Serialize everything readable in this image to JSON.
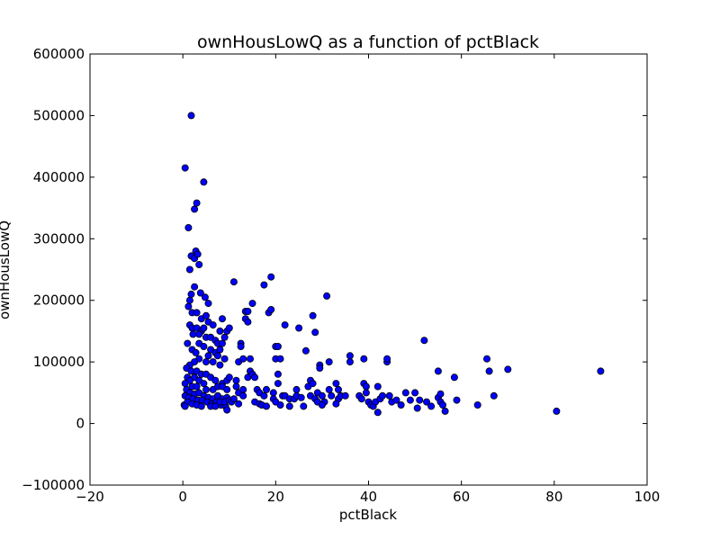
{
  "chart_data": {
    "type": "scatter",
    "title": "ownHousLowQ as a function of pctBlack",
    "xlabel": "pctBlack",
    "ylabel": "ownHousLowQ",
    "xlim": [
      -20,
      100
    ],
    "ylim": [
      -100000,
      600000
    ],
    "xticks": [
      -20,
      0,
      20,
      40,
      60,
      80,
      100
    ],
    "yticks": [
      -100000,
      0,
      100000,
      200000,
      300000,
      400000,
      500000,
      600000
    ],
    "xtick_labels": [
      "−20",
      "0",
      "20",
      "40",
      "60",
      "80",
      "100"
    ],
    "ytick_labels": [
      "−100000",
      "0",
      "100000",
      "200000",
      "300000",
      "400000",
      "500000",
      "600000"
    ],
    "grid": false,
    "marker_color": "#0000ff",
    "series": [
      {
        "points": [
          [
            0.5,
            415000
          ],
          [
            1.8,
            500000
          ],
          [
            4.5,
            392000
          ],
          [
            3.0,
            358000
          ],
          [
            2.5,
            348000
          ],
          [
            1.2,
            318000
          ],
          [
            2.8,
            280000
          ],
          [
            1.8,
            272000
          ],
          [
            2.5,
            268000
          ],
          [
            3.2,
            275000
          ],
          [
            1.5,
            250000
          ],
          [
            3.5,
            258000
          ],
          [
            2.5,
            222000
          ],
          [
            1.8,
            210000
          ],
          [
            1.5,
            200000
          ],
          [
            3.8,
            212000
          ],
          [
            4.8,
            205000
          ],
          [
            5.5,
            195000
          ],
          [
            1.2,
            190000
          ],
          [
            2.0,
            180000
          ],
          [
            3.0,
            180000
          ],
          [
            4.0,
            170000
          ],
          [
            5.0,
            175000
          ],
          [
            5.5,
            165000
          ],
          [
            6.5,
            160000
          ],
          [
            1.5,
            160000
          ],
          [
            2.0,
            155000
          ],
          [
            3.0,
            155000
          ],
          [
            4.0,
            150000
          ],
          [
            4.5,
            155000
          ],
          [
            2.2,
            145000
          ],
          [
            3.5,
            145000
          ],
          [
            5.0,
            140000
          ],
          [
            6.0,
            140000
          ],
          [
            7.0,
            135000
          ],
          [
            8.5,
            170000
          ],
          [
            8.0,
            150000
          ],
          [
            7.5,
            130000
          ],
          [
            9.5,
            150000
          ],
          [
            10.0,
            155000
          ],
          [
            9.0,
            140000
          ],
          [
            8.5,
            130000
          ],
          [
            3.5,
            130000
          ],
          [
            4.5,
            125000
          ],
          [
            1.0,
            130000
          ],
          [
            2.0,
            120000
          ],
          [
            2.8,
            115000
          ],
          [
            6.0,
            120000
          ],
          [
            5.5,
            110000
          ],
          [
            7.0,
            115000
          ],
          [
            8.0,
            120000
          ],
          [
            7.5,
            110000
          ],
          [
            9.0,
            105000
          ],
          [
            8.0,
            95000
          ],
          [
            6.5,
            100000
          ],
          [
            5.0,
            100000
          ],
          [
            3.5,
            105000
          ],
          [
            2.5,
            100000
          ],
          [
            1.5,
            95000
          ],
          [
            0.8,
            90000
          ],
          [
            1.8,
            85000
          ],
          [
            3.0,
            85000
          ],
          [
            4.0,
            80000
          ],
          [
            5.0,
            80000
          ],
          [
            2.5,
            75000
          ],
          [
            1.0,
            75000
          ],
          [
            1.5,
            70000
          ],
          [
            3.5,
            70000
          ],
          [
            4.5,
            65000
          ],
          [
            6.0,
            75000
          ],
          [
            7.0,
            70000
          ],
          [
            8.5,
            65000
          ],
          [
            9.5,
            70000
          ],
          [
            10.0,
            75000
          ],
          [
            0.5,
            65000
          ],
          [
            2.0,
            60000
          ],
          [
            3.0,
            60000
          ],
          [
            5.0,
            55000
          ],
          [
            6.5,
            55000
          ],
          [
            7.5,
            60000
          ],
          [
            8.5,
            60000
          ],
          [
            9.5,
            55000
          ],
          [
            0.8,
            55000
          ],
          [
            1.5,
            50000
          ],
          [
            2.5,
            48000
          ],
          [
            3.5,
            50000
          ],
          [
            4.5,
            45000
          ],
          [
            5.5,
            42000
          ],
          [
            6.5,
            40000
          ],
          [
            7.5,
            45000
          ],
          [
            8.5,
            40000
          ],
          [
            9.5,
            42000
          ],
          [
            0.5,
            45000
          ],
          [
            1.2,
            42000
          ],
          [
            2.2,
            40000
          ],
          [
            3.2,
            38000
          ],
          [
            4.2,
            38000
          ],
          [
            5.2,
            35000
          ],
          [
            6.2,
            32000
          ],
          [
            7.2,
            35000
          ],
          [
            8.2,
            30000
          ],
          [
            9.2,
            28000
          ],
          [
            0.3,
            30000
          ],
          [
            1.0,
            35000
          ],
          [
            2.0,
            32000
          ],
          [
            3.0,
            30000
          ],
          [
            4.0,
            28000
          ],
          [
            9.5,
            22000
          ],
          [
            0.5,
            28000
          ],
          [
            6.0,
            28000
          ],
          [
            7.0,
            28000
          ],
          [
            8.0,
            35000
          ],
          [
            9.0,
            35000
          ],
          [
            10.0,
            38000
          ],
          [
            10.5,
            35000
          ],
          [
            11.0,
            40000
          ],
          [
            12.0,
            32000
          ],
          [
            11.0,
            230000
          ],
          [
            12.5,
            130000
          ],
          [
            12.5,
            125000
          ],
          [
            12.0,
            100000
          ],
          [
            11.5,
            70000
          ],
          [
            11.5,
            60000
          ],
          [
            12.0,
            50000
          ],
          [
            13.0,
            55000
          ],
          [
            13.0,
            45000
          ],
          [
            13.5,
            182000
          ],
          [
            14.0,
            182000
          ],
          [
            13.5,
            170000
          ],
          [
            14.0,
            165000
          ],
          [
            13.0,
            105000
          ],
          [
            14.5,
            105000
          ],
          [
            14.5,
            85000
          ],
          [
            14.0,
            75000
          ],
          [
            15.0,
            80000
          ],
          [
            15.5,
            75000
          ],
          [
            15.0,
            195000
          ],
          [
            17.5,
            225000
          ],
          [
            18.5,
            180000
          ],
          [
            19.0,
            238000
          ],
          [
            19.0,
            185000
          ],
          [
            16.0,
            55000
          ],
          [
            16.5,
            50000
          ],
          [
            15.5,
            35000
          ],
          [
            16.5,
            32000
          ],
          [
            17.0,
            30000
          ],
          [
            18.0,
            28000
          ],
          [
            17.5,
            45000
          ],
          [
            18.0,
            55000
          ],
          [
            19.5,
            50000
          ],
          [
            19.5,
            40000
          ],
          [
            20.0,
            125000
          ],
          [
            20.5,
            125000
          ],
          [
            20.0,
            105000
          ],
          [
            20.5,
            80000
          ],
          [
            20.5,
            65000
          ],
          [
            21.0,
            105000
          ],
          [
            21.5,
            45000
          ],
          [
            21.0,
            30000
          ],
          [
            20.0,
            35000
          ],
          [
            22.0,
            160000
          ],
          [
            22.0,
            45000
          ],
          [
            23.0,
            40000
          ],
          [
            23.0,
            28000
          ],
          [
            24.0,
            40000
          ],
          [
            24.5,
            45000
          ],
          [
            24.5,
            55000
          ],
          [
            25.0,
            155000
          ],
          [
            25.5,
            42000
          ],
          [
            26.0,
            28000
          ],
          [
            26.5,
            118000
          ],
          [
            27.0,
            60000
          ],
          [
            27.5,
            70000
          ],
          [
            27.5,
            45000
          ],
          [
            28.0,
            175000
          ],
          [
            28.0,
            65000
          ],
          [
            28.5,
            148000
          ],
          [
            28.5,
            40000
          ],
          [
            29.0,
            35000
          ],
          [
            29.5,
            95000
          ],
          [
            29.5,
            90000
          ],
          [
            29.0,
            50000
          ],
          [
            30.0,
            45000
          ],
          [
            30.5,
            35000
          ],
          [
            31.0,
            207000
          ],
          [
            31.5,
            100000
          ],
          [
            31.5,
            55000
          ],
          [
            32.0,
            45000
          ],
          [
            30.0,
            30000
          ],
          [
            33.0,
            65000
          ],
          [
            33.5,
            55000
          ],
          [
            33.5,
            40000
          ],
          [
            34.0,
            45000
          ],
          [
            33.0,
            32000
          ],
          [
            35.0,
            45000
          ],
          [
            36.0,
            100000
          ],
          [
            36.0,
            110000
          ],
          [
            38.0,
            45000
          ],
          [
            38.5,
            40000
          ],
          [
            39.0,
            105000
          ],
          [
            39.0,
            65000
          ],
          [
            39.5,
            60000
          ],
          [
            39.5,
            50000
          ],
          [
            40.0,
            35000
          ],
          [
            40.5,
            30000
          ],
          [
            41.0,
            28000
          ],
          [
            41.5,
            35000
          ],
          [
            42.0,
            18000
          ],
          [
            42.5,
            40000
          ],
          [
            42.0,
            60000
          ],
          [
            43.0,
            45000
          ],
          [
            44.0,
            100000
          ],
          [
            44.0,
            105000
          ],
          [
            44.5,
            45000
          ],
          [
            45.0,
            35000
          ],
          [
            46.0,
            38000
          ],
          [
            47.0,
            30000
          ],
          [
            48.0,
            50000
          ],
          [
            49.0,
            38000
          ],
          [
            50.0,
            50000
          ],
          [
            50.5,
            25000
          ],
          [
            51.0,
            38000
          ],
          [
            52.0,
            135000
          ],
          [
            52.5,
            35000
          ],
          [
            53.5,
            28000
          ],
          [
            55.0,
            85000
          ],
          [
            55.0,
            42000
          ],
          [
            55.5,
            48000
          ],
          [
            55.5,
            35000
          ],
          [
            56.0,
            30000
          ],
          [
            56.5,
            20000
          ],
          [
            58.5,
            75000
          ],
          [
            59.0,
            38000
          ],
          [
            63.5,
            30000
          ],
          [
            65.5,
            105000
          ],
          [
            66.0,
            85000
          ],
          [
            67.0,
            45000
          ],
          [
            70.0,
            88000
          ],
          [
            80.5,
            20000
          ],
          [
            90.0,
            85000
          ]
        ]
      }
    ]
  }
}
